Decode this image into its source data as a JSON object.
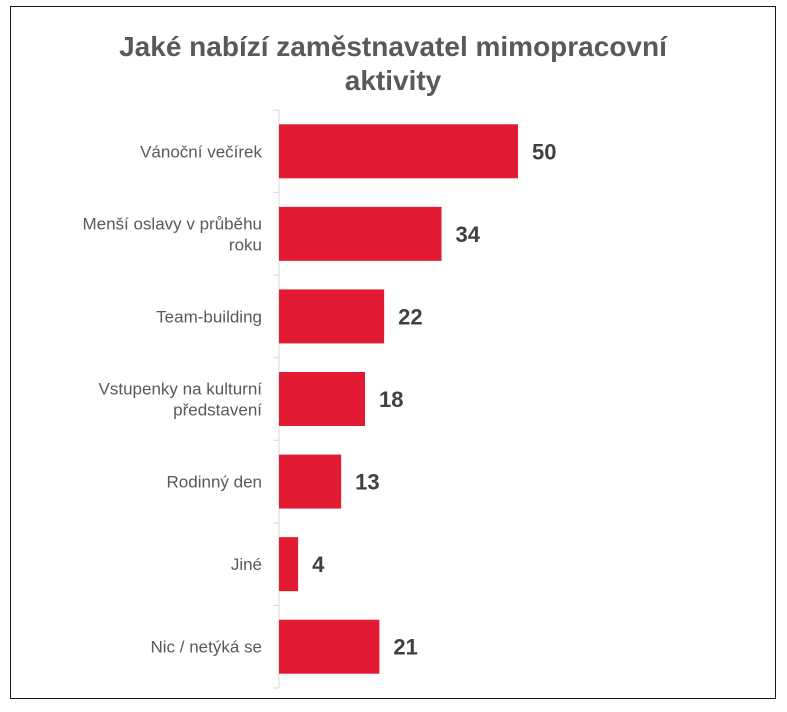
{
  "chart_data": {
    "type": "bar",
    "orientation": "horizontal",
    "title_lines": [
      "Jaké nabízí zaměstnavatel mimopracovní",
      "aktivity"
    ],
    "categories": [
      [
        "Vánoční večírek"
      ],
      [
        "Menší oslavy v průběhu",
        "roku"
      ],
      [
        "Team-building"
      ],
      [
        "Vstupenky na kulturní",
        "představení"
      ],
      [
        "Rodinný den"
      ],
      [
        "Jiné"
      ],
      [
        "Nic / netýká se"
      ]
    ],
    "values": [
      50,
      34,
      22,
      18,
      13,
      4,
      21
    ],
    "value_labels": [
      "50",
      "34",
      "22",
      "18",
      "13",
      "4",
      "21"
    ],
    "bar_color": "#e31b32",
    "xlim": [
      0,
      100
    ],
    "grid": false,
    "legend": "none"
  }
}
